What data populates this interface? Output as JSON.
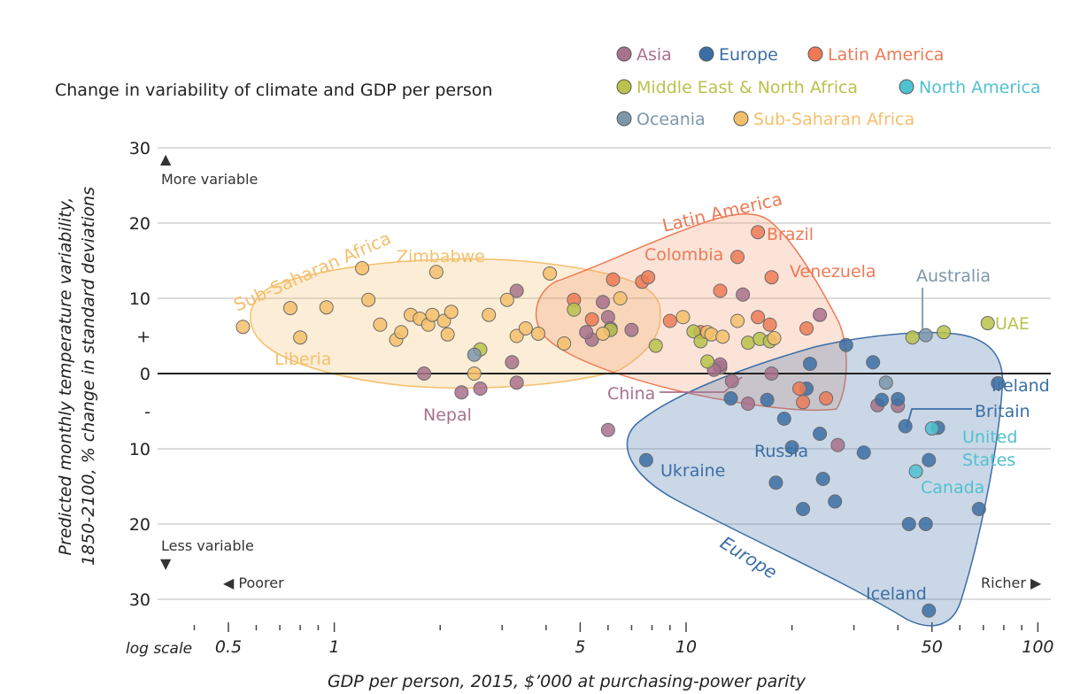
{
  "chart_data": {
    "type": "scatter",
    "title": "Change in variability of climate and GDP per person",
    "xlabel": "GDP per person, 2015, $’000 at purchasing-power parity",
    "ylabel_line1": "Predicted monthly temperature variability,",
    "ylabel_line2": "1850-2100, % change in standard deviations",
    "x_scale": "log",
    "x_scale_note": "log scale",
    "xlim": [
      0.3,
      100
    ],
    "ylim": [
      -31,
      30
    ],
    "x_ticks": [
      {
        "value": 0.5,
        "label": "0.5"
      },
      {
        "value": 1,
        "label": "1"
      },
      {
        "value": 5,
        "label": "5"
      },
      {
        "value": 10,
        "label": "10"
      },
      {
        "value": 50,
        "label": "50"
      },
      {
        "value": 100,
        "label": "100"
      }
    ],
    "x_minor_ticks": [
      0.4,
      0.6,
      0.7,
      0.8,
      0.9,
      2,
      3,
      4,
      6,
      7,
      8,
      9,
      20,
      30,
      40,
      60,
      70,
      80,
      90
    ],
    "y_ticks": [
      {
        "value": 30,
        "label": "30"
      },
      {
        "value": 20,
        "label": "20"
      },
      {
        "value": 10,
        "label": "10"
      },
      {
        "value": 5,
        "label": "+"
      },
      {
        "value": 0,
        "label": "0"
      },
      {
        "value": -5,
        "label": "-"
      },
      {
        "value": -10,
        "label": "10"
      },
      {
        "value": -20,
        "label": "20"
      },
      {
        "value": -30,
        "label": "30"
      }
    ],
    "notes": {
      "more_variable": "More variable",
      "less_variable": "Less variable",
      "poorer": "◀ Poorer",
      "richer": "Richer ▶"
    },
    "legend_position": "top-right",
    "series": [
      {
        "name": "Asia",
        "color": "#a8718c",
        "points": [
          [
            3.3,
            11
          ],
          [
            12.5,
            0.8
          ],
          [
            13.5,
            -1
          ],
          [
            14.5,
            10.5
          ],
          [
            2.3,
            -2.5
          ],
          [
            2.6,
            -2
          ],
          [
            3.2,
            1.5
          ],
          [
            3.3,
            -1.2
          ],
          [
            5.8,
            9.5
          ],
          [
            6,
            7.5
          ],
          [
            7,
            5.8
          ],
          [
            5.4,
            4.5
          ],
          [
            12.5,
            1.2
          ],
          [
            12,
            0.5
          ],
          [
            17.5,
            0
          ],
          [
            15,
            -4
          ],
          [
            24,
            7.8
          ],
          [
            27,
            -9.5
          ],
          [
            35,
            -4.2
          ],
          [
            40,
            -4.3
          ],
          [
            1.8,
            0
          ],
          [
            6,
            -7.5
          ],
          [
            5.2,
            5.5
          ],
          [
            6.1,
            6
          ]
        ]
      },
      {
        "name": "Europe",
        "color": "#3b6ea5",
        "points": [
          [
            7.7,
            -11.5
          ],
          [
            13.4,
            -3.3
          ],
          [
            17,
            -3.5
          ],
          [
            19,
            -6
          ],
          [
            20,
            -9.8
          ],
          [
            21.5,
            -18
          ],
          [
            22,
            -2
          ],
          [
            24,
            -8
          ],
          [
            22.5,
            1.3
          ],
          [
            24.5,
            -14
          ],
          [
            26.5,
            -17
          ],
          [
            28.5,
            3.8
          ],
          [
            32,
            -10.5
          ],
          [
            34,
            1.5
          ],
          [
            36,
            -3.5
          ],
          [
            40,
            -3.4
          ],
          [
            42,
            -7
          ],
          [
            43,
            -20
          ],
          [
            48,
            -20
          ],
          [
            49,
            -11.5
          ],
          [
            52,
            -7.2
          ],
          [
            68,
            -18
          ],
          [
            77,
            -1.3
          ],
          [
            49,
            -31.5
          ],
          [
            18,
            -14.5
          ]
        ]
      },
      {
        "name": "Latin America",
        "color": "#ee7a55",
        "points": [
          [
            16,
            18.8
          ],
          [
            14,
            15.5
          ],
          [
            17.5,
            12.8
          ],
          [
            6.2,
            12.5
          ],
          [
            7.5,
            12.2
          ],
          [
            7.8,
            12.8
          ],
          [
            12.5,
            11
          ],
          [
            4.8,
            9.8
          ],
          [
            5.4,
            7.2
          ],
          [
            9,
            7
          ],
          [
            11,
            5.5
          ],
          [
            16,
            7.5
          ],
          [
            17.3,
            6.5
          ],
          [
            22,
            6
          ],
          [
            21,
            -2
          ],
          [
            21.5,
            -3.8
          ],
          [
            25,
            -3.3
          ]
        ]
      },
      {
        "name": "Middle East & North Africa",
        "color": "#b9c24a",
        "points": [
          [
            4.8,
            8.5
          ],
          [
            2.6,
            3.2
          ],
          [
            6.1,
            5.8
          ],
          [
            10.5,
            5.6
          ],
          [
            11,
            4.3
          ],
          [
            8.2,
            3.7
          ],
          [
            11.5,
            1.6
          ],
          [
            15,
            4.1
          ],
          [
            16.2,
            4.6
          ],
          [
            17.3,
            4.3
          ],
          [
            44,
            4.8
          ],
          [
            54,
            5.5
          ],
          [
            72,
            6.7
          ]
        ]
      },
      {
        "name": "North America",
        "color": "#4fc1d0",
        "points": [
          [
            50,
            -7.3
          ],
          [
            45,
            -13
          ]
        ]
      },
      {
        "name": "Oceania",
        "color": "#7d97aa",
        "points": [
          [
            37,
            -1.2
          ],
          [
            48,
            5.1
          ],
          [
            2.5,
            2.5
          ]
        ]
      },
      {
        "name": "Sub-Saharan Africa",
        "color": "#f4bf6b",
        "points": [
          [
            0.55,
            6.2
          ],
          [
            0.75,
            8.7
          ],
          [
            0.8,
            4.8
          ],
          [
            0.95,
            8.8
          ],
          [
            1.2,
            14
          ],
          [
            1.25,
            9.8
          ],
          [
            1.35,
            6.5
          ],
          [
            1.5,
            4.5
          ],
          [
            1.55,
            5.5
          ],
          [
            1.65,
            7.8
          ],
          [
            1.75,
            7.3
          ],
          [
            1.85,
            6.5
          ],
          [
            1.95,
            13.5
          ],
          [
            1.9,
            7.8
          ],
          [
            2.05,
            7
          ],
          [
            2.1,
            5.2
          ],
          [
            2.15,
            8.2
          ],
          [
            2.5,
            0
          ],
          [
            2.75,
            7.8
          ],
          [
            3.1,
            9.8
          ],
          [
            3.3,
            5
          ],
          [
            3.5,
            6
          ],
          [
            3.8,
            5.3
          ],
          [
            4.1,
            13.3
          ],
          [
            4.5,
            4
          ],
          [
            5.8,
            5.3
          ],
          [
            6.5,
            10
          ],
          [
            9.8,
            7.5
          ],
          [
            11.5,
            5.5
          ],
          [
            11.8,
            5.2
          ],
          [
            14,
            7
          ],
          [
            12.7,
            4.9
          ],
          [
            17.8,
            4.7
          ]
        ]
      }
    ],
    "labels": [
      {
        "text": "Brazil",
        "series": "Latin America"
      },
      {
        "text": "Colombia",
        "series": "Latin America"
      },
      {
        "text": "Venezuela",
        "series": "Latin America"
      },
      {
        "text": "Zimbabwe",
        "series": "Sub-Saharan Africa"
      },
      {
        "text": "Liberia",
        "series": "Sub-Saharan Africa"
      },
      {
        "text": "Nepal",
        "series": "Asia"
      },
      {
        "text": "China",
        "series": "Asia"
      },
      {
        "text": "Australia",
        "series": "Oceania"
      },
      {
        "text": "UAE",
        "series": "Middle East & North Africa"
      },
      {
        "text": "Ireland",
        "series": "Europe"
      },
      {
        "text": "Britain",
        "series": "Europe"
      },
      {
        "text": "United",
        "series": "North America"
      },
      {
        "text": "States",
        "series": "North America"
      },
      {
        "text": "Canada",
        "series": "North America"
      },
      {
        "text": "Ukraine",
        "series": "Europe"
      },
      {
        "text": "Russia",
        "series": "Europe"
      },
      {
        "text": "Iceland",
        "series": "Europe"
      }
    ],
    "region_labels": [
      {
        "text": "Sub-Saharan Africa",
        "series": "Sub-Saharan Africa"
      },
      {
        "text": "Latin America",
        "series": "Latin America"
      },
      {
        "text": "Europe",
        "series": "Europe"
      }
    ],
    "grid": true
  }
}
